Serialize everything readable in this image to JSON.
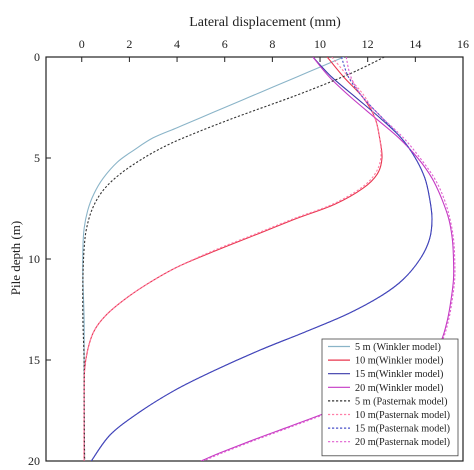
{
  "chart_data": {
    "type": "line",
    "xlabel": "Lateral displacement (mm)",
    "ylabel": "Pile depth (m)",
    "xlim": [
      -1.5,
      16
    ],
    "ylim": [
      0,
      20
    ],
    "y_inverted": true,
    "x_axis_position": "top",
    "x_ticks": [
      0,
      2,
      4,
      6,
      8,
      10,
      12,
      14,
      16
    ],
    "y_ticks": [
      0,
      5,
      10,
      15,
      20
    ],
    "grid": false,
    "legend_position": "bottom-right",
    "series": [
      {
        "name": "5 m  (Winkler model)",
        "color": "#8ab4c8",
        "dash": "solid",
        "points": [
          [
            11.0,
            0
          ],
          [
            10.0,
            0.5
          ],
          [
            9.0,
            1.0
          ],
          [
            8.0,
            1.5
          ],
          [
            7.0,
            2.0
          ],
          [
            6.0,
            2.5
          ],
          [
            5.0,
            3.0
          ],
          [
            4.0,
            3.5
          ],
          [
            3.0,
            4.0
          ],
          [
            2.2,
            4.6
          ],
          [
            1.5,
            5.2
          ],
          [
            0.9,
            6.0
          ],
          [
            0.5,
            6.8
          ],
          [
            0.25,
            7.6
          ],
          [
            0.1,
            8.5
          ],
          [
            0.05,
            9.5
          ],
          [
            0.05,
            11
          ],
          [
            0.1,
            13
          ],
          [
            0.1,
            15
          ],
          [
            0.1,
            17
          ],
          [
            0.12,
            20
          ]
        ]
      },
      {
        "name": "10 m(Winkler model)",
        "color": "#e8364e",
        "dash": "solid",
        "points": [
          [
            10.3,
            0
          ],
          [
            11.0,
            1.0
          ],
          [
            11.8,
            2.0
          ],
          [
            12.3,
            3.0
          ],
          [
            12.5,
            4.0
          ],
          [
            12.6,
            5.0
          ],
          [
            12.4,
            5.8
          ],
          [
            11.8,
            6.5
          ],
          [
            10.6,
            7.3
          ],
          [
            9.0,
            8.0
          ],
          [
            7.3,
            8.8
          ],
          [
            5.6,
            9.6
          ],
          [
            4.0,
            10.4
          ],
          [
            2.8,
            11.2
          ],
          [
            1.8,
            12.0
          ],
          [
            1.0,
            12.8
          ],
          [
            0.5,
            13.6
          ],
          [
            0.25,
            14.5
          ],
          [
            0.12,
            15.5
          ],
          [
            0.1,
            17
          ],
          [
            0.1,
            20
          ]
        ]
      },
      {
        "name": "15 m(Winkler model)",
        "color": "#3a3aaa",
        "dash": "solid",
        "points": [
          [
            9.7,
            0
          ],
          [
            10.5,
            1.0
          ],
          [
            11.5,
            2.0
          ],
          [
            12.5,
            3.0
          ],
          [
            13.4,
            4.0
          ],
          [
            14.0,
            5.0
          ],
          [
            14.4,
            6.0
          ],
          [
            14.6,
            7.0
          ],
          [
            14.7,
            8.0
          ],
          [
            14.6,
            9.0
          ],
          [
            14.2,
            10.0
          ],
          [
            13.5,
            11.0
          ],
          [
            12.6,
            11.8
          ],
          [
            11.2,
            12.7
          ],
          [
            9.4,
            13.6
          ],
          [
            7.5,
            14.5
          ],
          [
            5.6,
            15.5
          ],
          [
            3.9,
            16.5
          ],
          [
            2.4,
            17.6
          ],
          [
            1.2,
            18.7
          ],
          [
            0.4,
            20
          ]
        ]
      },
      {
        "name": "20 m(Winkler model)",
        "color": "#c43ac4",
        "dash": "solid",
        "points": [
          [
            9.7,
            0
          ],
          [
            10.4,
            1.0
          ],
          [
            11.3,
            2.0
          ],
          [
            12.3,
            3.0
          ],
          [
            13.3,
            4.0
          ],
          [
            14.1,
            5.0
          ],
          [
            14.7,
            6.0
          ],
          [
            15.1,
            7.0
          ],
          [
            15.4,
            8.0
          ],
          [
            15.55,
            9.0
          ],
          [
            15.6,
            10.0
          ],
          [
            15.6,
            11.0
          ],
          [
            15.5,
            12.0
          ],
          [
            15.35,
            13.0
          ],
          [
            15.1,
            14.0
          ],
          [
            14.6,
            15.0
          ],
          [
            13.7,
            15.8
          ],
          [
            12.3,
            16.6
          ],
          [
            10.5,
            17.5
          ],
          [
            8.7,
            18.3
          ],
          [
            7.1,
            19.0
          ],
          [
            5.8,
            19.6
          ],
          [
            5.0,
            20
          ]
        ]
      },
      {
        "name": "5 m  (Pasternak model)",
        "color": "#333333",
        "dash": "dotted",
        "points": [
          [
            12.7,
            0
          ],
          [
            11.5,
            0.7
          ],
          [
            10.3,
            1.3
          ],
          [
            9.0,
            1.9
          ],
          [
            7.6,
            2.5
          ],
          [
            6.2,
            3.1
          ],
          [
            4.9,
            3.7
          ],
          [
            3.7,
            4.3
          ],
          [
            2.6,
            5.0
          ],
          [
            1.6,
            5.8
          ],
          [
            0.9,
            6.6
          ],
          [
            0.45,
            7.5
          ],
          [
            0.2,
            8.5
          ],
          [
            0.1,
            9.5
          ],
          [
            0.05,
            11
          ],
          [
            0.05,
            13
          ],
          [
            0.1,
            15
          ],
          [
            0.1,
            17
          ],
          [
            0.12,
            20
          ]
        ]
      },
      {
        "name": "10 m(Pasternak model)",
        "color": "#ff7fa8",
        "dash": "dotted",
        "points": [
          [
            10.5,
            0
          ],
          [
            11.2,
            1.0
          ],
          [
            11.9,
            2.0
          ],
          [
            12.3,
            3.0
          ],
          [
            12.5,
            4.0
          ],
          [
            12.55,
            5.0
          ],
          [
            12.3,
            5.8
          ],
          [
            11.7,
            6.5
          ],
          [
            10.5,
            7.3
          ],
          [
            8.9,
            8.0
          ],
          [
            7.2,
            8.8
          ],
          [
            5.5,
            9.6
          ],
          [
            4.0,
            10.4
          ],
          [
            2.8,
            11.2
          ],
          [
            1.8,
            12.0
          ],
          [
            1.0,
            12.8
          ],
          [
            0.5,
            13.6
          ],
          [
            0.25,
            14.5
          ],
          [
            0.12,
            15.5
          ],
          [
            0.1,
            17
          ],
          [
            0.1,
            20
          ]
        ]
      },
      {
        "name": "15 m(Pasternak model)",
        "color": "#4a50c8",
        "dash": "dotted",
        "points": [
          [
            10.9,
            0
          ],
          [
            11.2,
            1.0
          ],
          [
            11.8,
            2.0
          ],
          [
            12.6,
            3.0
          ],
          [
            13.4,
            4.0
          ],
          [
            14.0,
            5.0
          ],
          [
            14.4,
            6.0
          ],
          [
            14.6,
            7.0
          ],
          [
            14.7,
            8.0
          ],
          [
            14.6,
            9.0
          ],
          [
            14.2,
            10.0
          ],
          [
            13.5,
            11.0
          ],
          [
            12.6,
            11.8
          ],
          [
            11.2,
            12.7
          ],
          [
            9.4,
            13.6
          ],
          [
            7.5,
            14.5
          ],
          [
            5.6,
            15.5
          ],
          [
            3.9,
            16.5
          ],
          [
            2.4,
            17.6
          ],
          [
            1.2,
            18.7
          ],
          [
            0.4,
            20
          ]
        ]
      },
      {
        "name": "20 m(Pasternak model)",
        "color": "#e060d0",
        "dash": "dotted",
        "points": [
          [
            11.1,
            0
          ],
          [
            11.3,
            1.0
          ],
          [
            11.8,
            2.0
          ],
          [
            12.6,
            3.0
          ],
          [
            13.5,
            4.0
          ],
          [
            14.2,
            5.0
          ],
          [
            14.8,
            6.0
          ],
          [
            15.2,
            7.0
          ],
          [
            15.45,
            8.0
          ],
          [
            15.6,
            9.0
          ],
          [
            15.65,
            10.0
          ],
          [
            15.65,
            11.0
          ],
          [
            15.55,
            12.0
          ],
          [
            15.4,
            13.0
          ],
          [
            15.15,
            14.0
          ],
          [
            14.7,
            15.0
          ],
          [
            13.8,
            15.8
          ],
          [
            12.4,
            16.6
          ],
          [
            10.6,
            17.5
          ],
          [
            8.8,
            18.3
          ],
          [
            7.2,
            19.0
          ],
          [
            5.9,
            19.6
          ],
          [
            5.1,
            20
          ]
        ]
      }
    ]
  }
}
